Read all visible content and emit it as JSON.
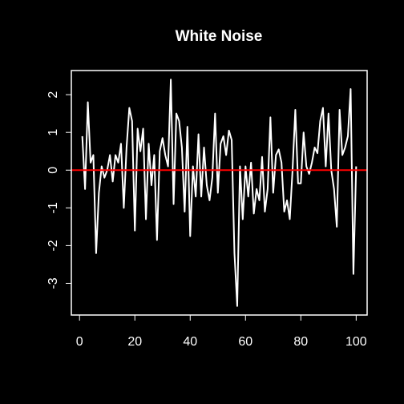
{
  "chart_data": {
    "type": "line",
    "title": "White Noise",
    "x": [
      1,
      2,
      3,
      4,
      5,
      6,
      7,
      8,
      9,
      10,
      11,
      12,
      13,
      14,
      15,
      16,
      17,
      18,
      19,
      20,
      21,
      22,
      23,
      24,
      25,
      26,
      27,
      28,
      29,
      30,
      31,
      32,
      33,
      34,
      35,
      36,
      37,
      38,
      39,
      40,
      41,
      42,
      43,
      44,
      45,
      46,
      47,
      48,
      49,
      50,
      51,
      52,
      53,
      54,
      55,
      56,
      57,
      58,
      59,
      60,
      61,
      62,
      63,
      64,
      65,
      66,
      67,
      68,
      69,
      70,
      71,
      72,
      73,
      74,
      75,
      76,
      77,
      78,
      79,
      80,
      81,
      82,
      83,
      84,
      85,
      86,
      87,
      88,
      89,
      90,
      91,
      92,
      93,
      94,
      95,
      96,
      97,
      98,
      99,
      100
    ],
    "series": [
      {
        "color": "#ffffff",
        "values": [
          0.9,
          -0.5,
          1.8,
          0.2,
          0.4,
          -2.2,
          -0.6,
          0.1,
          -0.2,
          0.0,
          0.4,
          -0.3,
          0.4,
          0.2,
          0.7,
          -1.0,
          0.6,
          1.65,
          1.3,
          -1.6,
          1.1,
          0.5,
          1.1,
          -1.3,
          0.7,
          -0.4,
          0.4,
          -1.85,
          0.5,
          0.85,
          0.4,
          0.1,
          2.4,
          -0.9,
          1.5,
          1.3,
          0.6,
          -1.1,
          1.15,
          -1.75,
          0.1,
          -0.7,
          0.95,
          -0.7,
          0.6,
          -0.4,
          -0.8,
          -0.2,
          1.5,
          -0.6,
          0.7,
          0.9,
          0.4,
          1.05,
          0.8,
          -2.2,
          -3.6,
          0.1,
          -1.3,
          0.1,
          -0.7,
          0.2,
          -1.15,
          -0.5,
          -0.8,
          0.35,
          -1.1,
          -0.5,
          1.4,
          -0.6,
          0.4,
          0.55,
          0.2,
          -1.1,
          -0.8,
          -1.3,
          0.0,
          1.6,
          -0.35,
          -0.35,
          1.0,
          0.1,
          -0.1,
          0.2,
          0.6,
          0.45,
          1.3,
          1.65,
          0.1,
          1.5,
          0.0,
          -0.5,
          -1.5,
          1.6,
          0.4,
          0.6,
          0.9,
          2.15,
          -2.75,
          0.1
        ]
      }
    ],
    "hline": {
      "value": 0,
      "color": "#ff0000"
    },
    "xlim": [
      -2.96,
      103.96
    ],
    "ylim": [
      -3.84,
      2.64
    ],
    "xticks": [
      0,
      20,
      40,
      60,
      80,
      100
    ],
    "yticks": [
      -3,
      -2,
      -1,
      0,
      1,
      2
    ]
  }
}
